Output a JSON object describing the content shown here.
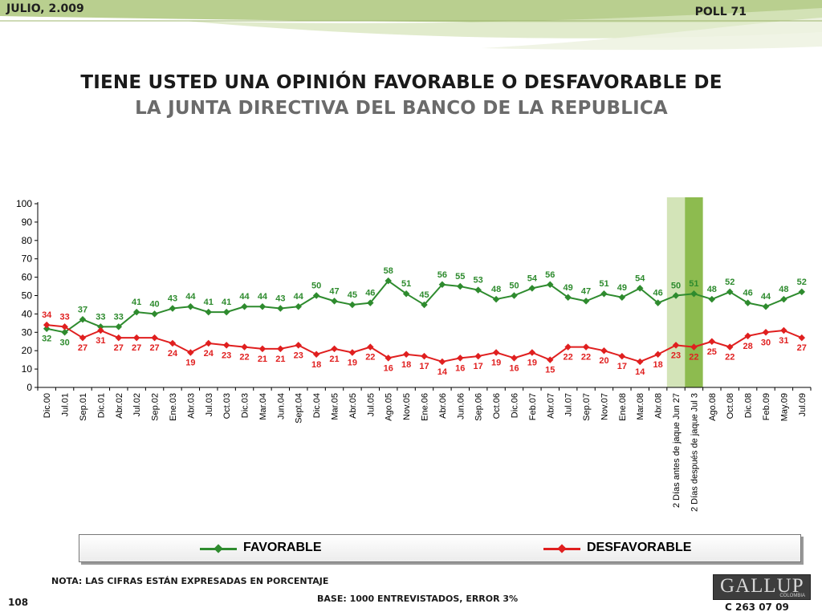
{
  "header": {
    "date": "JULIO, 2.009",
    "poll": "POLL 71",
    "title_line1": "TIENE USTED UNA OPINIÓN FAVORABLE O DESFAVORABLE DE",
    "title_line2": "LA JUNTA DIRECTIVA DEL BANCO DE LA REPUBLICA"
  },
  "chart_data": {
    "type": "line",
    "title": "TIENE USTED UNA OPINIÓN FAVORABLE O DESFAVORABLE DE LA JUNTA DIRECTIVA DEL BANCO DE LA REPUBLICA",
    "categories": [
      "Dic.00",
      "Jul.01",
      "Sep.01",
      "Dic.01",
      "Abr.02",
      "Jul.02",
      "Sep.02",
      "Ene.03",
      "Abr.03",
      "Jul.03",
      "Oct.03",
      "Dic.03",
      "Mar.04",
      "Jun.04",
      "Sept.04",
      "Dic.04",
      "Mar.05",
      "Abr.05",
      "Jul.05",
      "Ago.05",
      "Nov.05",
      "Ene.06",
      "Abr.06",
      "Jun.06",
      "Sep.06",
      "Oct.06",
      "Dic.06",
      "Feb.07",
      "Abr.07",
      "Jul.07",
      "Sep.07",
      "Nov.07",
      "Ene.08",
      "Mar.08",
      "Abr.08",
      "2 Días antes de jaque Jun 27",
      "2 Días después de jaque Jul 3",
      "Ago.08",
      "Oct.08",
      "Dic.08",
      "Feb.09",
      "May.09",
      "Jul.09"
    ],
    "series": [
      {
        "name": "FAVORABLE",
        "color": "#2e8b2e",
        "values": [
          32,
          30,
          37,
          33,
          33,
          41,
          40,
          43,
          44,
          41,
          41,
          44,
          44,
          43,
          44,
          50,
          47,
          45,
          46,
          58,
          51,
          45,
          56,
          55,
          53,
          48,
          50,
          54,
          56,
          49,
          47,
          51,
          49,
          54,
          46,
          50,
          51,
          48,
          52,
          46,
          44,
          48,
          52
        ]
      },
      {
        "name": "DESFAVORABLE",
        "color": "#e01f1f",
        "values": [
          34,
          33,
          27,
          31,
          27,
          27,
          27,
          24,
          19,
          24,
          23,
          22,
          21,
          21,
          23,
          18,
          21,
          19,
          22,
          16,
          18,
          17,
          14,
          16,
          17,
          19,
          16,
          19,
          15,
          22,
          22,
          20,
          17,
          14,
          18,
          23,
          22,
          25,
          22,
          28,
          30,
          31,
          27
        ]
      }
    ],
    "ylim": [
      0,
      100
    ],
    "yticks": [
      0,
      10,
      20,
      30,
      40,
      50,
      60,
      70,
      80,
      90,
      100
    ],
    "highlighted_categories": [
      35,
      36
    ],
    "legend": "bottom"
  },
  "legend": {
    "favorable": "FAVORABLE",
    "desfavorable": "DESFAVORABLE"
  },
  "footer": {
    "note": "NOTA: LAS CIFRAS ESTÁN EXPRESADAS EN PORCENTAJE",
    "base": "BASE: 1000 ENTREVISTADOS, ERROR 3%",
    "page": "108",
    "logo": "GALLUP",
    "logo_sub": "COLOMBIA",
    "code": "C 263 07 09"
  },
  "colors": {
    "favorable": "#2e8b2e",
    "desfavorable": "#e01f1f",
    "highlight_light": "#d3e4b8",
    "highlight_dark": "#8dbb4f"
  }
}
